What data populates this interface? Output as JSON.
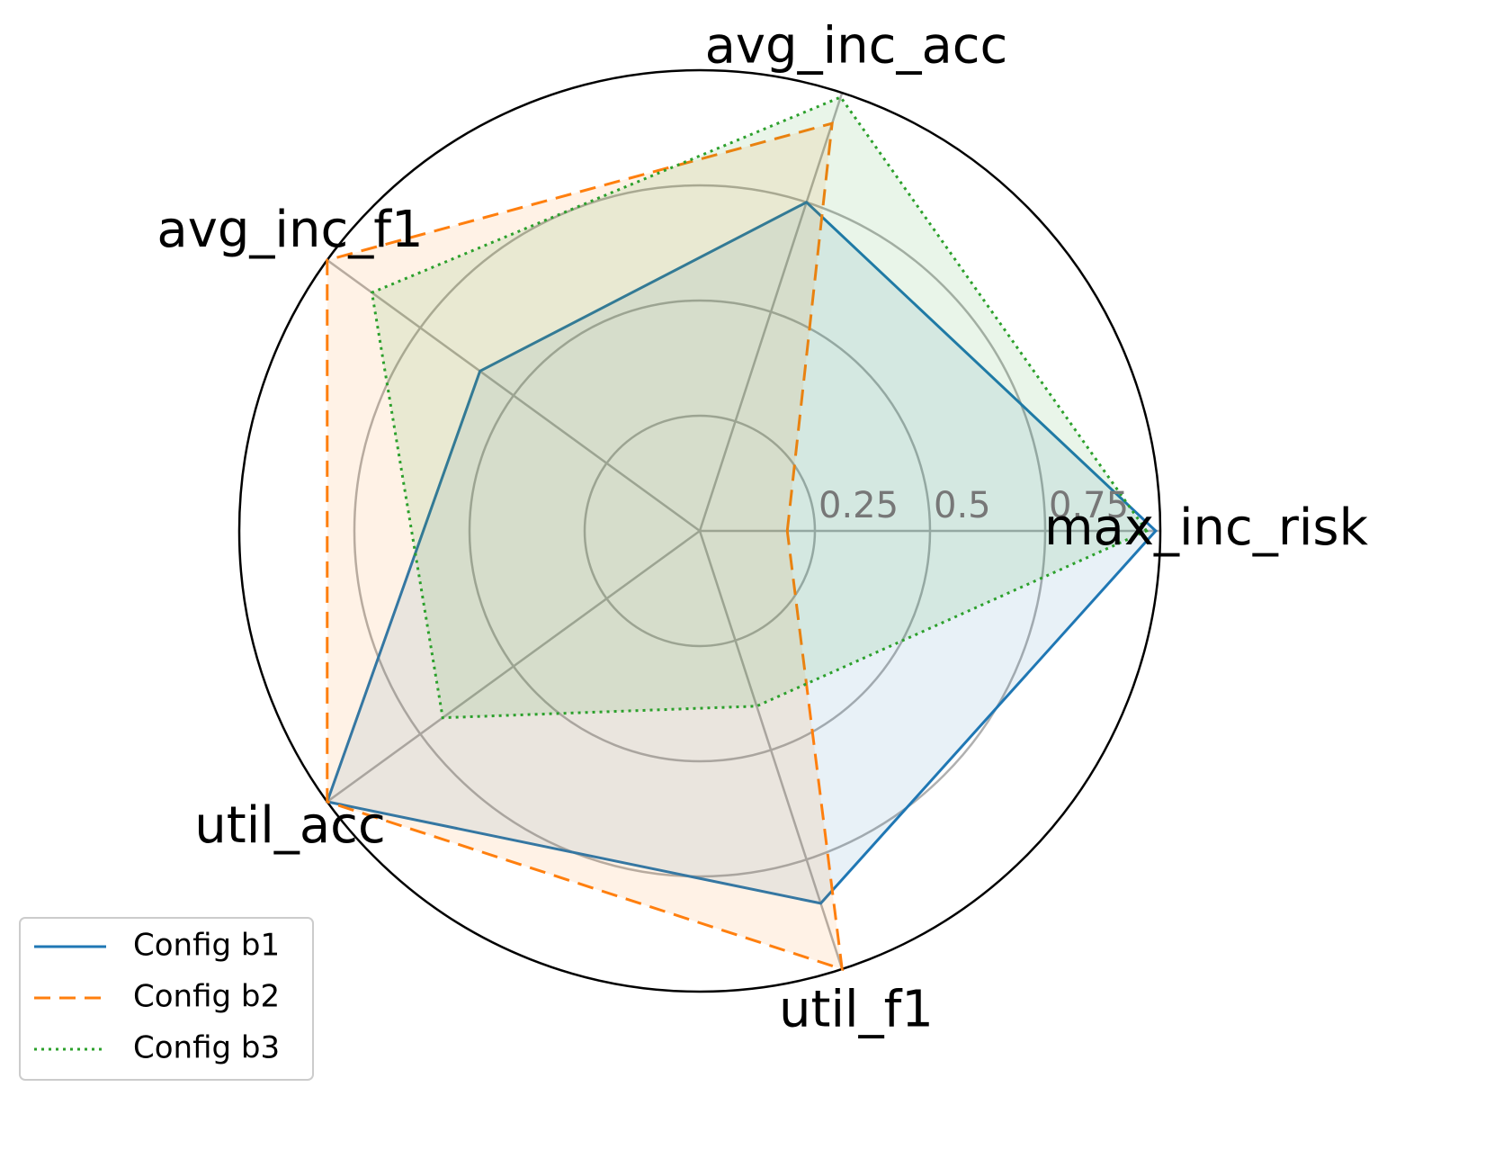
{
  "chart_data": {
    "type": "radar",
    "categories": [
      "max_inc_risk",
      "avg_inc_acc",
      "avg_inc_f1",
      "util_acc",
      "util_f1"
    ],
    "series": [
      {
        "name": "Config b1",
        "color": "#1f77b4",
        "linestyle": "solid",
        "values": [
          0.99,
          0.75,
          0.59,
          1.0,
          0.85
        ]
      },
      {
        "name": "Config b2",
        "color": "#ff7f0e",
        "linestyle": "dashed",
        "values": [
          0.19,
          0.93,
          1.0,
          1.0,
          1.0
        ]
      },
      {
        "name": "Config b3",
        "color": "#2ca02c",
        "linestyle": "dotted",
        "values": [
          0.97,
          0.99,
          0.88,
          0.69,
          0.4
        ]
      }
    ],
    "ylim": [
      0,
      1
    ],
    "yticks": [
      0.25,
      0.5,
      0.75
    ],
    "grid": true,
    "legend": "lower left"
  }
}
